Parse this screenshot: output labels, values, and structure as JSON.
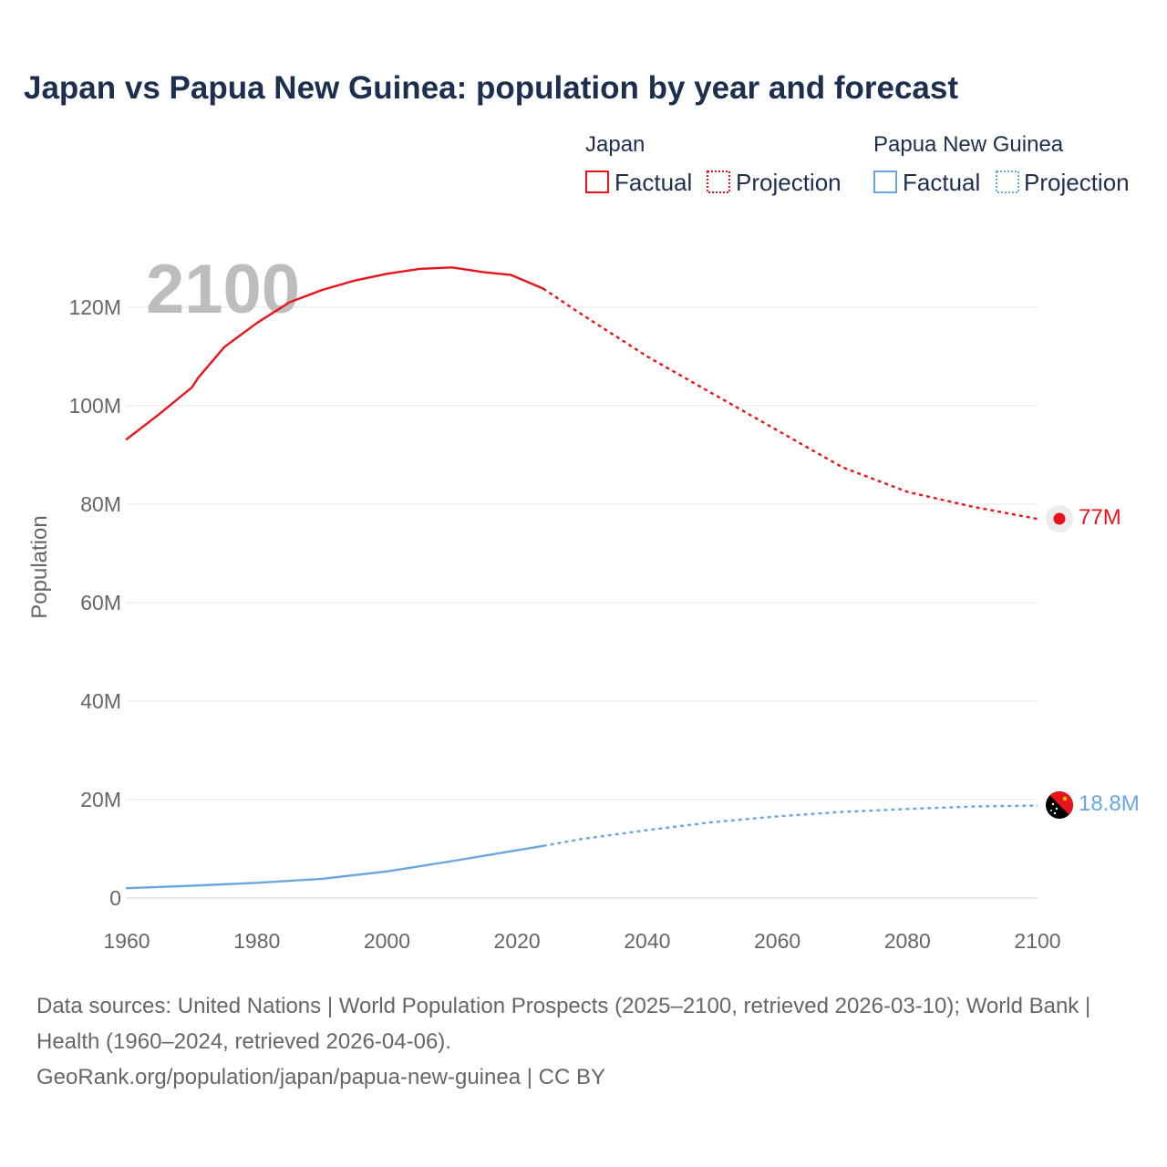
{
  "chart_data": {
    "type": "line",
    "title": "Japan vs Papua New Guinea: population by year and forecast",
    "ylabel": "Population",
    "xlabel": "",
    "xlim": [
      1960,
      2100
    ],
    "ylim": [
      0,
      130000000
    ],
    "x_ticks": [
      {
        "value": 1960,
        "label": "1960"
      },
      {
        "value": 1980,
        "label": "1980"
      },
      {
        "value": 2000,
        "label": "2000"
      },
      {
        "value": 2020,
        "label": "2020"
      },
      {
        "value": 2040,
        "label": "2040"
      },
      {
        "value": 2060,
        "label": "2060"
      },
      {
        "value": 2080,
        "label": "2080"
      },
      {
        "value": 2100,
        "label": "2100"
      }
    ],
    "y_ticks": [
      {
        "value": 0,
        "label": "0"
      },
      {
        "value": 20000000,
        "label": "20M"
      },
      {
        "value": 40000000,
        "label": "40M"
      },
      {
        "value": 60000000,
        "label": "60M"
      },
      {
        "value": 80000000,
        "label": "80M"
      },
      {
        "value": 100000000,
        "label": "100M"
      },
      {
        "value": 120000000,
        "label": "120M"
      }
    ],
    "grid": true,
    "watermark_year": "2100",
    "legend": {
      "placement": "top-right",
      "factual_label": "Factual",
      "projection_label": "Projection"
    },
    "series": [
      {
        "name": "Japan",
        "color": "#e8141b",
        "end_label": "77M",
        "factual": [
          [
            1960,
            93.2
          ],
          [
            1965,
            98.3
          ],
          [
            1970,
            103.7
          ],
          [
            1971,
            105.7
          ],
          [
            1975,
            111.9
          ],
          [
            1980,
            116.8
          ],
          [
            1985,
            121.0
          ],
          [
            1990,
            123.5
          ],
          [
            1995,
            125.4
          ],
          [
            2000,
            126.8
          ],
          [
            2005,
            127.8
          ],
          [
            2010,
            128.1
          ],
          [
            2015,
            127.1
          ],
          [
            2019,
            126.6
          ],
          [
            2024,
            123.8
          ]
        ],
        "projection": [
          [
            2024,
            123.8
          ],
          [
            2030,
            118.5
          ],
          [
            2040,
            110.0
          ],
          [
            2050,
            102.5
          ],
          [
            2060,
            95.0
          ],
          [
            2070,
            87.5
          ],
          [
            2080,
            82.5
          ],
          [
            2090,
            79.5
          ],
          [
            2100,
            77.0
          ]
        ]
      },
      {
        "name": "Papua New Guinea",
        "color": "#6aa6e0",
        "end_label": "18.8M",
        "factual": [
          [
            1960,
            2.0
          ],
          [
            1970,
            2.5
          ],
          [
            1980,
            3.1
          ],
          [
            1990,
            3.9
          ],
          [
            2000,
            5.4
          ],
          [
            2010,
            7.5
          ],
          [
            2020,
            9.7
          ],
          [
            2024,
            10.6
          ]
        ],
        "projection": [
          [
            2024,
            10.6
          ],
          [
            2030,
            12.0
          ],
          [
            2040,
            13.8
          ],
          [
            2050,
            15.4
          ],
          [
            2060,
            16.6
          ],
          [
            2070,
            17.5
          ],
          [
            2080,
            18.1
          ],
          [
            2090,
            18.6
          ],
          [
            2100,
            18.8
          ]
        ]
      }
    ]
  },
  "source": {
    "line1": "Data sources: United Nations | World Population Prospects (2025–2100, retrieved 2026-03-10); World Bank | Health (1960–2024, retrieved 2026-04-06).",
    "line2": "GeoRank.org/population/japan/papua-new-guinea | CC BY"
  }
}
